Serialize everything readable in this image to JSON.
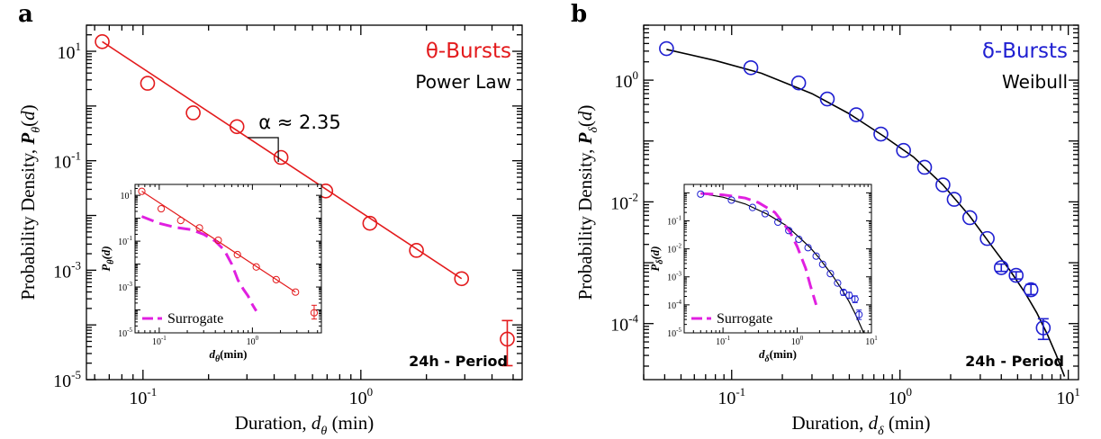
{
  "chart_data": [
    {
      "panel": "a",
      "type": "scatter",
      "scale": "log-log",
      "color": "#e31a1c",
      "xlabel_prefix": "Duration, ",
      "xlabel_var": "d",
      "xlabel_sub": "θ",
      "xlabel_suffix": " (min)",
      "ylabel_prefix": "Probability Density, ",
      "ylabel_var": "P",
      "ylabel_sub": "θ",
      "ylabel_arg_open": "(",
      "ylabel_arg": "d",
      "ylabel_arg_close": ")",
      "xlim": [
        0.055,
        5.5
      ],
      "ylim": [
        1e-05,
        30
      ],
      "x_ticks": [
        {
          "v": 0.1,
          "m": "10",
          "e": "-1"
        },
        {
          "v": 1,
          "m": "10",
          "e": "0"
        }
      ],
      "y_ticks": [
        {
          "v": 1e-05,
          "m": "10",
          "e": "-5"
        },
        {
          "v": 0.001,
          "m": "10",
          "e": "-3"
        },
        {
          "v": 0.1,
          "m": "10",
          "e": "-1"
        },
        {
          "v": 10,
          "m": "10",
          "e": "1"
        }
      ],
      "legend_title": "θ-Bursts",
      "legend_sub": "Power Law",
      "annotation": "α ≈ 2.35",
      "period_label": "24h - Period",
      "points": [
        {
          "x": 0.065,
          "y": 15,
          "err": null
        },
        {
          "x": 0.105,
          "y": 2.6,
          "err": null
        },
        {
          "x": 0.17,
          "y": 0.75,
          "err": null
        },
        {
          "x": 0.27,
          "y": 0.42,
          "err": null
        },
        {
          "x": 0.43,
          "y": 0.115,
          "err": null
        },
        {
          "x": 0.69,
          "y": 0.028,
          "err": null
        },
        {
          "x": 1.1,
          "y": 0.0072,
          "err": null
        },
        {
          "x": 1.8,
          "y": 0.0023,
          "err": null
        },
        {
          "x": 2.9,
          "y": 0.0007,
          "err": null
        },
        {
          "x": 4.7,
          "y": 5.5e-05,
          "err": [
            1.8e-05,
            0.00012
          ]
        }
      ],
      "fit": {
        "x": [
          0.065,
          2.9
        ],
        "y": [
          15,
          0.0007
        ]
      },
      "inset": {
        "xlabel_var": "d",
        "xlabel_sub": "θ",
        "xlabel_suffix": "(min)",
        "ylabel_var": "P",
        "ylabel_sub": "θ",
        "ylabel_arg": "(d)",
        "xlim": [
          0.055,
          5.5
        ],
        "ylim": [
          1e-05,
          30
        ],
        "x_ticks": [
          {
            "v": 0.1,
            "m": "10",
            "e": "-1"
          },
          {
            "v": 1,
            "m": "10",
            "e": "0"
          }
        ],
        "y_ticks": [
          {
            "v": 1e-05,
            "m": "10",
            "e": "-5"
          },
          {
            "v": 0.001,
            "m": "10",
            "e": "-3"
          },
          {
            "v": 0.1,
            "m": "10",
            "e": "-1"
          },
          {
            "v": 10,
            "m": "10",
            "e": "1"
          }
        ],
        "points": [
          {
            "x": 0.065,
            "y": 15,
            "err": null
          },
          {
            "x": 0.105,
            "y": 2.6,
            "err": null
          },
          {
            "x": 0.17,
            "y": 0.8,
            "err": null
          },
          {
            "x": 0.27,
            "y": 0.38,
            "err": null
          },
          {
            "x": 0.43,
            "y": 0.11,
            "err": null
          },
          {
            "x": 0.69,
            "y": 0.026,
            "err": null
          },
          {
            "x": 1.1,
            "y": 0.0075,
            "err": null
          },
          {
            "x": 1.8,
            "y": 0.0021,
            "err": null
          },
          {
            "x": 2.9,
            "y": 0.0006,
            "err": null
          },
          {
            "x": 4.6,
            "y": 7.5e-05,
            "err": [
              4e-05,
              0.00016
            ]
          }
        ],
        "fit": {
          "x": [
            0.065,
            2.9
          ],
          "y": [
            15,
            0.0006
          ]
        },
        "surrogate": {
          "name": "Surrogate",
          "x": [
            0.065,
            0.1,
            0.15,
            0.22,
            0.3,
            0.4,
            0.5,
            0.6,
            0.7,
            0.8,
            0.9,
            1.0,
            1.1
          ],
          "y": [
            1.2,
            0.6,
            0.4,
            0.32,
            0.2,
            0.1,
            0.04,
            0.01,
            0.002,
            0.0008,
            0.0004,
            0.00017,
            9e-05
          ]
        }
      }
    },
    {
      "panel": "b",
      "type": "scatter",
      "scale": "log-log",
      "color": "#1f1fd1",
      "xlabel_prefix": "Duration, ",
      "xlabel_var": "d",
      "xlabel_sub": "δ",
      "xlabel_suffix": "  (min)",
      "ylabel_prefix": "Probability Density, ",
      "ylabel_var": "P",
      "ylabel_sub": "δ",
      "ylabel_arg_open": "(",
      "ylabel_arg": "d",
      "ylabel_arg_close": ")",
      "xlim": [
        0.03,
        11.5
      ],
      "ylim": [
        1.2e-05,
        8
      ],
      "x_ticks": [
        {
          "v": 0.1,
          "m": "10",
          "e": "-1"
        },
        {
          "v": 1,
          "m": "10",
          "e": "0"
        },
        {
          "v": 10,
          "m": "10",
          "e": "1"
        }
      ],
      "y_ticks": [
        {
          "v": 0.0001,
          "m": "10",
          "e": "-4"
        },
        {
          "v": 0.01,
          "m": "10",
          "e": "-2"
        },
        {
          "v": 1,
          "m": "10",
          "e": "0"
        }
      ],
      "legend_title": "δ-Bursts",
      "legend_sub": "Weibull",
      "period_label": "24h - Period",
      "points": [
        {
          "x": 0.041,
          "y": 3.3,
          "err": null
        },
        {
          "x": 0.13,
          "y": 1.6,
          "err": null
        },
        {
          "x": 0.25,
          "y": 0.9,
          "err": null
        },
        {
          "x": 0.37,
          "y": 0.49,
          "err": null
        },
        {
          "x": 0.55,
          "y": 0.27,
          "err": null
        },
        {
          "x": 0.77,
          "y": 0.13,
          "err": null
        },
        {
          "x": 1.05,
          "y": 0.07,
          "err": null
        },
        {
          "x": 1.4,
          "y": 0.037,
          "err": null
        },
        {
          "x": 1.8,
          "y": 0.019,
          "err": null
        },
        {
          "x": 2.1,
          "y": 0.011,
          "err": null
        },
        {
          "x": 2.6,
          "y": 0.0055,
          "err": null
        },
        {
          "x": 3.3,
          "y": 0.0025,
          "err": null
        },
        {
          "x": 4.0,
          "y": 0.00083,
          "err": [
            0.00072,
            0.00095
          ]
        },
        {
          "x": 4.9,
          "y": 0.00062,
          "err": [
            0.00054,
            0.00071
          ]
        },
        {
          "x": 6.0,
          "y": 0.00036,
          "err": [
            0.0003,
            0.00044
          ]
        },
        {
          "x": 7.1,
          "y": 8.5e-05,
          "err": [
            5.5e-05,
            0.00012
          ]
        }
      ],
      "fit": {
        "x": [
          0.041,
          0.08,
          0.15,
          0.3,
          0.5,
          0.8,
          1.2,
          1.8,
          2.6,
          3.5,
          4.5,
          5.5,
          6.5,
          7.5,
          8.5,
          9.5
        ],
        "y": [
          3.2,
          2.1,
          1.3,
          0.6,
          0.28,
          0.12,
          0.055,
          0.019,
          0.0058,
          0.0019,
          0.00075,
          0.00033,
          0.00015,
          6.7e-05,
          3e-05,
          1.35e-05
        ]
      },
      "inset": {
        "xlabel_var": "d",
        "xlabel_sub": "δ",
        "xlabel_suffix": "(min)",
        "ylabel_var": "P",
        "ylabel_sub": "δ",
        "ylabel_arg": "(d)",
        "xlim": [
          0.03,
          10
        ],
        "ylim": [
          1e-05,
          2
        ],
        "x_ticks": [
          {
            "v": 0.1,
            "m": "10",
            "e": "-1"
          },
          {
            "v": 1,
            "m": "10",
            "e": "0"
          },
          {
            "v": 10,
            "m": "10",
            "e": "1"
          }
        ],
        "y_ticks": [
          {
            "v": 1e-05,
            "m": "10",
            "e": "-5"
          },
          {
            "v": 0.0001,
            "m": "10",
            "e": "-4"
          },
          {
            "v": 0.001,
            "m": "10",
            "e": "-3"
          },
          {
            "v": 0.01,
            "m": "10",
            "e": "-2"
          },
          {
            "v": 0.1,
            "m": "10",
            "e": "-1"
          }
        ],
        "points": [
          {
            "x": 0.05,
            "y": 0.9,
            "err": null
          },
          {
            "x": 0.13,
            "y": 0.55,
            "err": null
          },
          {
            "x": 0.25,
            "y": 0.3,
            "err": null
          },
          {
            "x": 0.37,
            "y": 0.18,
            "err": null
          },
          {
            "x": 0.55,
            "y": 0.09,
            "err": null
          },
          {
            "x": 0.77,
            "y": 0.045,
            "err": null
          },
          {
            "x": 1.05,
            "y": 0.022,
            "err": null
          },
          {
            "x": 1.4,
            "y": 0.011,
            "err": null
          },
          {
            "x": 1.8,
            "y": 0.0055,
            "err": null
          },
          {
            "x": 2.2,
            "y": 0.0028,
            "err": null
          },
          {
            "x": 2.8,
            "y": 0.0013,
            "err": null
          },
          {
            "x": 3.5,
            "y": 0.0006,
            "err": null
          },
          {
            "x": 4.2,
            "y": 0.00028,
            "err": [
              0.00022,
              0.00034
            ]
          },
          {
            "x": 5.0,
            "y": 0.00022,
            "err": [
              0.00017,
              0.00028
            ]
          },
          {
            "x": 6.0,
            "y": 0.00016,
            "err": [
              0.00012,
              0.00021
            ]
          },
          {
            "x": 6.8,
            "y": 4.5e-05,
            "err": [
              3e-05,
              6.5e-05
            ]
          }
        ],
        "fit": {
          "x": [
            0.05,
            0.1,
            0.2,
            0.4,
            0.7,
            1.0,
            1.5,
            2.0,
            3.0,
            4.0,
            5.0,
            6.0,
            7.0,
            8.0
          ],
          "y": [
            0.95,
            0.7,
            0.4,
            0.17,
            0.07,
            0.03,
            0.011,
            0.0045,
            0.0011,
            0.00035,
            0.00013,
            5e-05,
            2e-05,
            9e-06
          ]
        },
        "surrogate": {
          "name": "Surrogate",
          "x": [
            0.05,
            0.1,
            0.2,
            0.3,
            0.5,
            0.8,
            1.0,
            1.3,
            1.5,
            1.8
          ],
          "y": [
            0.95,
            0.85,
            0.65,
            0.45,
            0.2,
            0.04,
            0.012,
            0.002,
            0.0005,
            0.0001
          ]
        }
      }
    }
  ]
}
